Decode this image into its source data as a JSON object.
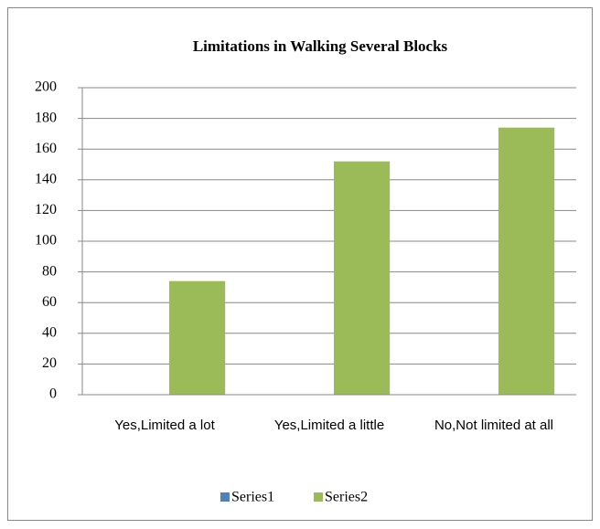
{
  "chart_data": {
    "type": "bar",
    "title": "Limitations in Walking Several Blocks",
    "categories": [
      "Yes,Limited a lot",
      "Yes,Limited a little",
      "No,Not limited at all"
    ],
    "series": [
      {
        "name": "Series1",
        "color": "#4f81bd",
        "values": [
          0,
          0,
          0
        ]
      },
      {
        "name": "Series2",
        "color": "#9bbb59",
        "values": [
          74,
          152,
          174
        ]
      }
    ],
    "ylim": [
      0,
      200
    ],
    "yticks": [
      0,
      20,
      40,
      60,
      80,
      100,
      120,
      140,
      160,
      180,
      200
    ],
    "grid": true,
    "legend": "bottom"
  }
}
